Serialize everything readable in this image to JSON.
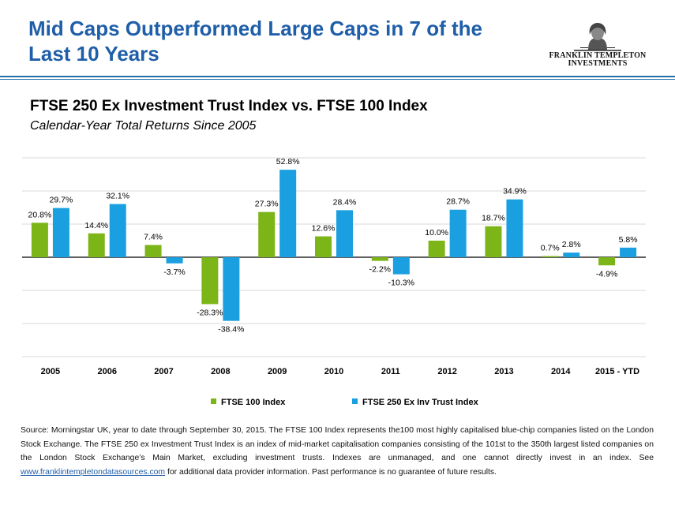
{
  "header": {
    "title": "Mid Caps Outperformed Large Caps in 7 of the Last 10 Years",
    "logo_line1": "FRANKLIN TEMPLETON",
    "logo_line2": "INVESTMENTS"
  },
  "source": {
    "text_before_link": "Source: Morningstar UK, year to date through September 30, 2015. The FTSE 100 Index represents the100 most highly capitalised blue-chip companies listed on the London Stock Exchange. The FTSE 250 ex Investment Trust Index is an index of mid-market capitalisation companies consisting of the 101st to the 350th largest listed companies on the London Stock Exchange’s Main Market, excluding investment trusts. Indexes are unmanaged, and one cannot directly invest in an index. See ",
    "link_text": "www.franklintempletondatasources.com",
    "text_after_link": " for additional data provider information. Past performance is no guarantee of future results."
  },
  "colors": {
    "title_blue": "#1f5ea8",
    "rule_blue": "#1f6fa8"
  },
  "chart_data": {
    "type": "bar",
    "title": "FTSE 250 Ex Investment Trust Index vs. FTSE 100 Index",
    "subtitle": "Calendar-Year Total Returns Since 2005",
    "categories": [
      "2005",
      "2006",
      "2007",
      "2008",
      "2009",
      "2010",
      "2011",
      "2012",
      "2013",
      "2014",
      "2015 - YTD"
    ],
    "series": [
      {
        "name": "FTSE 100 Index",
        "color": "#7cb518",
        "values": [
          20.8,
          14.4,
          7.4,
          -28.3,
          27.3,
          12.6,
          -2.2,
          10.0,
          18.7,
          0.7,
          -4.9
        ],
        "labels": [
          "20.8%",
          "14.4%",
          "7.4%",
          "-28.3%",
          "27.3%",
          "12.6%",
          "-2.2%",
          "10.0%",
          "18.7%",
          "0.7%",
          "-4.9%"
        ]
      },
      {
        "name": "FTSE 250 Ex Inv Trust Index",
        "color": "#1aa0e0",
        "values": [
          29.7,
          32.1,
          -3.7,
          -38.4,
          52.8,
          28.4,
          -10.3,
          28.7,
          34.9,
          2.8,
          5.8
        ],
        "labels": [
          "29.7%",
          "32.1%",
          "-3.7%",
          "-38.4%",
          "52.8%",
          "28.4%",
          "-10.3%",
          "28.7%",
          "34.9%",
          "2.8%",
          "5.8%"
        ]
      }
    ],
    "ylim": [
      -60,
      60
    ],
    "grid": true,
    "legend": "bottom"
  }
}
